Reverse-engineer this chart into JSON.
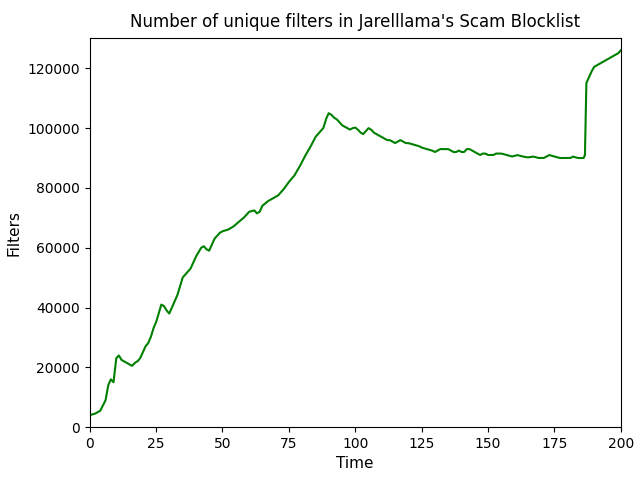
{
  "title": "Number of unique filters in Jarelllama's Scam Blocklist",
  "xlabel": "Time",
  "ylabel": "Filters",
  "line_color": "#008000",
  "line_width": 1.5,
  "xlim": [
    0,
    200
  ],
  "ylim": [
    0,
    130000
  ],
  "xticks": [
    0,
    25,
    50,
    75,
    100,
    125,
    150,
    175,
    200
  ],
  "yticks": [
    0,
    20000,
    40000,
    60000,
    80000,
    100000,
    120000
  ],
  "key_points": [
    [
      0,
      4000
    ],
    [
      2,
      4500
    ],
    [
      4,
      5500
    ],
    [
      6,
      9000
    ],
    [
      7,
      14000
    ],
    [
      8,
      16000
    ],
    [
      9,
      15000
    ],
    [
      10,
      23000
    ],
    [
      11,
      24000
    ],
    [
      12,
      22500
    ],
    [
      13,
      22000
    ],
    [
      14,
      21500
    ],
    [
      15,
      21000
    ],
    [
      16,
      20500
    ],
    [
      17,
      21500
    ],
    [
      18,
      22000
    ],
    [
      19,
      23000
    ],
    [
      20,
      25000
    ],
    [
      21,
      27000
    ],
    [
      22,
      28000
    ],
    [
      23,
      30000
    ],
    [
      24,
      33000
    ],
    [
      25,
      35000
    ],
    [
      26,
      38000
    ],
    [
      27,
      41000
    ],
    [
      28,
      40500
    ],
    [
      29,
      39000
    ],
    [
      30,
      38000
    ],
    [
      31,
      40000
    ],
    [
      32,
      42000
    ],
    [
      33,
      44000
    ],
    [
      34,
      47000
    ],
    [
      35,
      50000
    ],
    [
      36,
      51000
    ],
    [
      37,
      52000
    ],
    [
      38,
      53000
    ],
    [
      39,
      55000
    ],
    [
      40,
      57000
    ],
    [
      41,
      58500
    ],
    [
      42,
      60000
    ],
    [
      43,
      60500
    ],
    [
      44,
      59500
    ],
    [
      45,
      59000
    ],
    [
      46,
      61000
    ],
    [
      47,
      63000
    ],
    [
      48,
      64000
    ],
    [
      49,
      65000
    ],
    [
      50,
      65500
    ],
    [
      52,
      66000
    ],
    [
      54,
      67000
    ],
    [
      56,
      68500
    ],
    [
      58,
      70000
    ],
    [
      60,
      72000
    ],
    [
      62,
      72500
    ],
    [
      63,
      71500
    ],
    [
      64,
      72000
    ],
    [
      65,
      74000
    ],
    [
      67,
      75500
    ],
    [
      69,
      76500
    ],
    [
      71,
      77500
    ],
    [
      73,
      79500
    ],
    [
      75,
      82000
    ],
    [
      77,
      84000
    ],
    [
      79,
      87000
    ],
    [
      81,
      90500
    ],
    [
      83,
      93500
    ],
    [
      85,
      97000
    ],
    [
      87,
      99000
    ],
    [
      88,
      100000
    ],
    [
      89,
      103000
    ],
    [
      90,
      105000
    ],
    [
      91,
      104500
    ],
    [
      92,
      103500
    ],
    [
      93,
      103000
    ],
    [
      94,
      102000
    ],
    [
      95,
      101000
    ],
    [
      96,
      100500
    ],
    [
      97,
      100000
    ],
    [
      98,
      99500
    ],
    [
      99,
      100000
    ],
    [
      100,
      100200
    ],
    [
      101,
      99500
    ],
    [
      102,
      98500
    ],
    [
      103,
      98000
    ],
    [
      104,
      99000
    ],
    [
      105,
      100000
    ],
    [
      106,
      99500
    ],
    [
      107,
      98500
    ],
    [
      108,
      98000
    ],
    [
      109,
      97500
    ],
    [
      110,
      97000
    ],
    [
      111,
      96500
    ],
    [
      112,
      96000
    ],
    [
      113,
      96000
    ],
    [
      114,
      95500
    ],
    [
      115,
      95000
    ],
    [
      116,
      95500
    ],
    [
      117,
      96000
    ],
    [
      118,
      95500
    ],
    [
      119,
      95000
    ],
    [
      120,
      95000
    ],
    [
      122,
      94500
    ],
    [
      124,
      94000
    ],
    [
      125,
      93500
    ],
    [
      127,
      93000
    ],
    [
      129,
      92500
    ],
    [
      130,
      92000
    ],
    [
      131,
      92500
    ],
    [
      132,
      93000
    ],
    [
      133,
      93000
    ],
    [
      135,
      93000
    ],
    [
      136,
      92500
    ],
    [
      137,
      92000
    ],
    [
      138,
      92000
    ],
    [
      139,
      92500
    ],
    [
      140,
      92000
    ],
    [
      141,
      92000
    ],
    [
      142,
      93000
    ],
    [
      143,
      93000
    ],
    [
      144,
      92500
    ],
    [
      145,
      92000
    ],
    [
      146,
      91500
    ],
    [
      147,
      91000
    ],
    [
      148,
      91500
    ],
    [
      149,
      91500
    ],
    [
      150,
      91000
    ],
    [
      151,
      91000
    ],
    [
      152,
      91000
    ],
    [
      153,
      91500
    ],
    [
      155,
      91500
    ],
    [
      157,
      91000
    ],
    [
      159,
      90500
    ],
    [
      161,
      91000
    ],
    [
      163,
      90500
    ],
    [
      165,
      90200
    ],
    [
      167,
      90500
    ],
    [
      169,
      90000
    ],
    [
      171,
      90000
    ],
    [
      172,
      90500
    ],
    [
      173,
      91000
    ],
    [
      175,
      90500
    ],
    [
      177,
      90000
    ],
    [
      179,
      90000
    ],
    [
      180,
      90000
    ],
    [
      181,
      90000
    ],
    [
      182,
      90500
    ],
    [
      183,
      90200
    ],
    [
      184,
      90000
    ],
    [
      185,
      90000
    ],
    [
      186,
      90000
    ],
    [
      186.5,
      91000
    ],
    [
      187,
      115000
    ],
    [
      188,
      117000
    ],
    [
      189,
      119000
    ],
    [
      190,
      120500
    ],
    [
      191,
      121000
    ],
    [
      192,
      121500
    ],
    [
      193,
      122000
    ],
    [
      195,
      123000
    ],
    [
      197,
      124000
    ],
    [
      199,
      125000
    ],
    [
      200,
      126000
    ]
  ]
}
